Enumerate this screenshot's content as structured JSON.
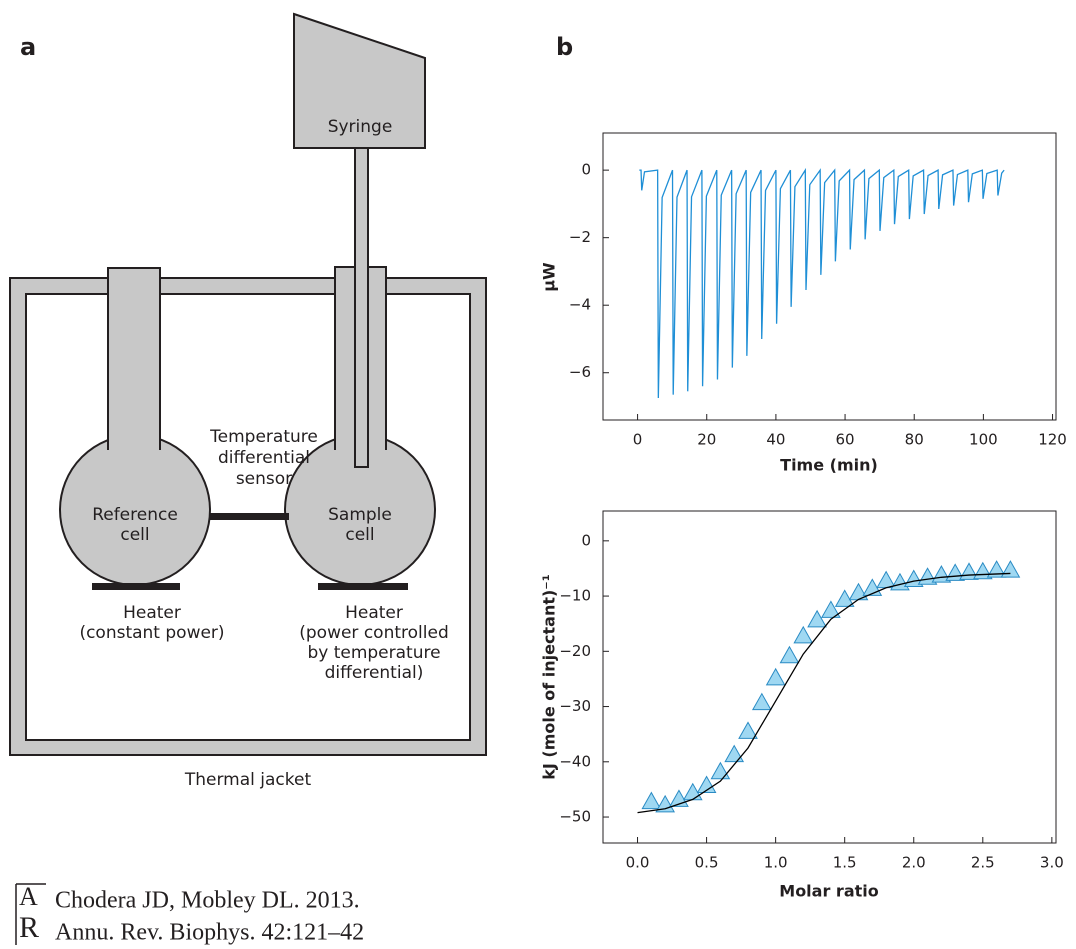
{
  "panel_labels": [
    "a",
    "b"
  ],
  "diagram": {
    "syringe": "Syringe",
    "sensor": [
      "Temperature",
      "differential",
      "sensor"
    ],
    "reference_cell": [
      "Reference",
      "cell"
    ],
    "sample_cell": [
      "Sample",
      "cell"
    ],
    "heater_left": [
      "Heater",
      "(constant power)"
    ],
    "heater_right": [
      "Heater",
      "(power controlled",
      "by temperature",
      "differential)"
    ],
    "jacket": "Thermal jacket"
  },
  "citation": {
    "logo": [
      "A",
      "R"
    ],
    "lines": [
      "Chodera JD, Mobley DL. 2013.",
      "Annu. Rev. Biophys. 42:121–42"
    ]
  },
  "chart_data": [
    {
      "type": "line",
      "xlabel": "Time (min)",
      "ylabel": "μW",
      "color": "#1f8fd6",
      "x": [
        0.5,
        1.0,
        1.2,
        2.0,
        5.8,
        6.0,
        7.1,
        10.1,
        10.3,
        11.4,
        14.3,
        14.5,
        15.6,
        18.6,
        18.8,
        19.9,
        22.9,
        23.1,
        24.2,
        27.2,
        27.4,
        28.5,
        31.4,
        31.6,
        32.7,
        35.7,
        35.9,
        37.0,
        40.0,
        40.2,
        41.3,
        44.2,
        44.4,
        45.5,
        48.5,
        48.7,
        49.8,
        52.8,
        53.0,
        54.1,
        57.0,
        57.2,
        58.3,
        61.3,
        61.5,
        62.6,
        65.6,
        65.8,
        66.9,
        69.9,
        70.1,
        71.2,
        74.1,
        74.3,
        75.4,
        78.4,
        78.6,
        79.7,
        82.7,
        82.9,
        84.0,
        86.9,
        87.1,
        88.2,
        91.2,
        91.4,
        92.5,
        95.5,
        95.7,
        96.8,
        99.7,
        99.9,
        101.0,
        104.0,
        104.2,
        105.3,
        106.0
      ],
      "values": [
        0,
        0,
        -0.6,
        -0.05,
        0,
        -6.75,
        -0.81,
        0,
        -6.65,
        -0.8,
        0,
        -6.55,
        -0.79,
        0,
        -6.4,
        -0.77,
        0,
        -6.2,
        -0.74,
        0,
        -5.85,
        -0.7,
        0,
        -5.5,
        -0.66,
        0,
        -5.0,
        -0.6,
        0,
        -4.55,
        -0.55,
        0,
        -4.05,
        -0.49,
        0,
        -3.55,
        -0.43,
        0,
        -3.1,
        -0.37,
        0,
        -2.7,
        -0.32,
        0,
        -2.35,
        -0.28,
        0,
        -2.05,
        -0.25,
        0,
        -1.8,
        -0.22,
        0,
        -1.6,
        -0.19,
        0,
        -1.45,
        -0.17,
        0,
        -1.3,
        -0.16,
        0,
        -1.15,
        -0.14,
        0,
        -1.05,
        -0.13,
        0,
        -0.95,
        -0.11,
        0,
        -0.85,
        -0.1,
        0,
        -0.75,
        -0.09,
        0
      ],
      "xlim": [
        -10,
        121
      ],
      "ylim": [
        -7.4,
        1.1
      ],
      "xticks": [
        0,
        20,
        40,
        60,
        80,
        100,
        120
      ],
      "yticks": [
        0,
        {
          "value": -2,
          "label": "−2"
        },
        {
          "value": -4,
          "label": "−4"
        },
        {
          "value": -6,
          "label": "−6"
        }
      ]
    },
    {
      "type": "scatter",
      "xlabel": "Molar ratio",
      "ylabel": "kJ (mole of injectant)⁻¹",
      "series": [
        {
          "marker": "triangle",
          "color": "#9fd8f2",
          "edgecolor": "#2a8bc4",
          "x": [
            0.1,
            0.2,
            0.3,
            0.4,
            0.5,
            0.6,
            0.7,
            0.8,
            0.9,
            1.0,
            1.1,
            1.2,
            1.3,
            1.4,
            1.5,
            1.6,
            1.7,
            1.8,
            1.9,
            2.0,
            2.1,
            2.2,
            2.3,
            2.4,
            2.5,
            2.6,
            2.7
          ],
          "values": [
            -47.2,
            -47.8,
            -46.8,
            -45.6,
            -44.3,
            -41.8,
            -38.7,
            -34.5,
            -29.3,
            -24.8,
            -20.8,
            -17.2,
            -14.3,
            -12.6,
            -10.6,
            -9.4,
            -8.6,
            -7.2,
            -7.6,
            -7.0,
            -6.6,
            -6.2,
            -5.9,
            -5.7,
            -5.6,
            -5.3,
            -5.3
          ]
        },
        {
          "marker": "line",
          "color": "#000000",
          "x": [
            0,
            0.2,
            0.4,
            0.6,
            0.8,
            1.0,
            1.2,
            1.4,
            1.6,
            1.8,
            2.0,
            2.2,
            2.4,
            2.7
          ],
          "values": [
            -49.2,
            -48.5,
            -46.8,
            -43.5,
            -37.5,
            -29,
            -20.5,
            -14.2,
            -10.6,
            -8.5,
            -7.3,
            -6.6,
            -6.2,
            -5.9
          ]
        }
      ],
      "xlim": [
        -0.25,
        3.03
      ],
      "ylim": [
        -54.7,
        5.4
      ],
      "xticks": [
        {
          "value": 0,
          "label": "0.0"
        },
        0.5,
        {
          "value": 1,
          "label": "1.0"
        },
        1.5,
        {
          "value": 2,
          "label": "2.0"
        },
        2.5,
        {
          "value": 3,
          "label": "3.0"
        }
      ],
      "yticks": [
        0,
        {
          "value": -10,
          "label": "−10"
        },
        {
          "value": -20,
          "label": "−20"
        },
        {
          "value": -30,
          "label": "−30"
        },
        {
          "value": -40,
          "label": "−40"
        },
        {
          "value": -50,
          "label": "−50"
        }
      ]
    }
  ]
}
